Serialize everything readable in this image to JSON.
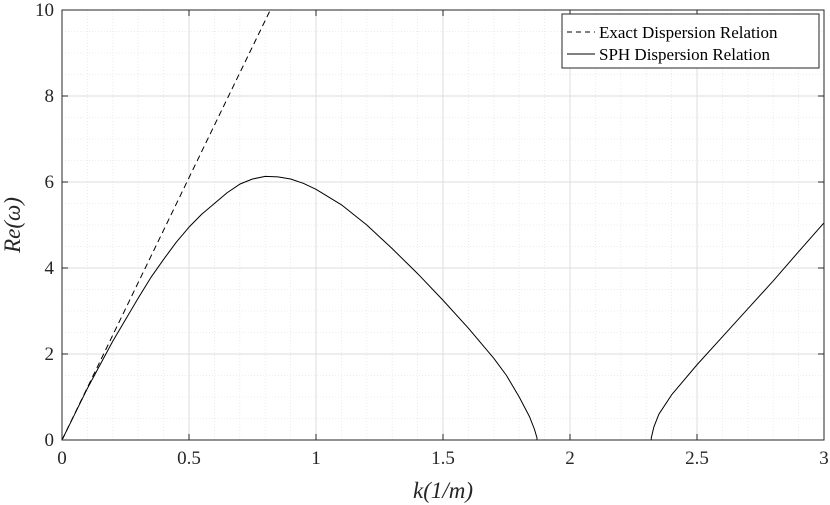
{
  "chart_data": {
    "type": "line",
    "xlabel": "k(1/m)",
    "ylabel": "Re(ω)",
    "xlim": [
      0,
      3
    ],
    "ylim": [
      0,
      10
    ],
    "xticks": [
      0,
      0.5,
      1,
      1.5,
      2,
      2.5,
      3
    ],
    "xtick_labels": [
      "0",
      "0.5",
      "1",
      "1.5",
      "2",
      "2.5",
      "3"
    ],
    "yticks": [
      0,
      2,
      4,
      6,
      8,
      10
    ],
    "ytick_labels": [
      "0",
      "2",
      "4",
      "6",
      "8",
      "10"
    ],
    "grid": true,
    "minor_grid": true,
    "legend_position": "top-right",
    "series": [
      {
        "name": "Exact Dispersion Relation",
        "style": "dashed",
        "color": "#000000",
        "x": [
          0,
          0.2,
          0.4,
          0.6,
          0.82
        ],
        "y": [
          0,
          2.44,
          4.88,
          7.32,
          10.0
        ]
      },
      {
        "name": "SPH Dispersion Relation",
        "style": "solid",
        "color": "#000000",
        "x": [
          0,
          0.05,
          0.1,
          0.15,
          0.2,
          0.25,
          0.3,
          0.35,
          0.4,
          0.45,
          0.5,
          0.55,
          0.6,
          0.65,
          0.7,
          0.75,
          0.8,
          0.85,
          0.9,
          0.95,
          1.0,
          1.1,
          1.2,
          1.3,
          1.4,
          1.5,
          1.6,
          1.7,
          1.75,
          1.8,
          1.84,
          1.86,
          1.87,
          1.87,
          2.0,
          2.2,
          2.32,
          2.32,
          2.33,
          2.35,
          2.4,
          2.5,
          2.6,
          2.7,
          2.8,
          2.9,
          3.0
        ],
        "y": [
          0,
          0.6,
          1.2,
          1.75,
          2.3,
          2.8,
          3.3,
          3.78,
          4.2,
          4.6,
          4.95,
          5.25,
          5.5,
          5.75,
          5.95,
          6.07,
          6.13,
          6.12,
          6.07,
          5.97,
          5.83,
          5.47,
          5.0,
          4.45,
          3.87,
          3.25,
          2.6,
          1.9,
          1.5,
          1.0,
          0.55,
          0.25,
          0.05,
          0,
          0,
          0,
          0,
          0.05,
          0.3,
          0.6,
          1.05,
          1.75,
          2.4,
          3.05,
          3.7,
          4.38,
          5.05
        ]
      }
    ]
  }
}
